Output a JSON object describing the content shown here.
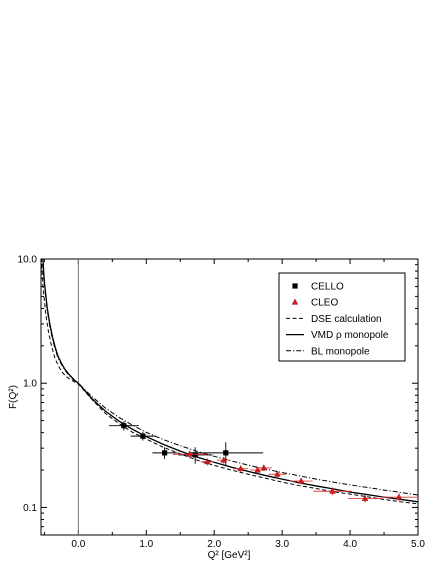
{
  "chart_data": {
    "type": "scatter",
    "title": "",
    "xlabel": "Q² [GeV²]",
    "ylabel": "F(Q²)",
    "xlim": [
      -0.55,
      5.0
    ],
    "ylim": [
      0.06,
      10.0
    ],
    "yscale": "log",
    "x_ticks": [
      0.0,
      1.0,
      2.0,
      3.0,
      4.0,
      5.0
    ],
    "x_tick_labels": [
      "0.0",
      "1.0",
      "2.0",
      "3.0",
      "4.0",
      "5.0"
    ],
    "y_ticks": [
      0.1,
      1.0,
      10.0
    ],
    "y_tick_labels": [
      "0.1",
      "1.0",
      "10.0"
    ],
    "grid": false,
    "legend_position": "top-right",
    "vertical_line_at_x": 0.0,
    "series": [
      {
        "name": "CELLO",
        "kind": "points",
        "marker": "square",
        "color": "#000000",
        "points": [
          {
            "x": 0.67,
            "y": 0.455,
            "xerr": 0.22,
            "yerr": 0.04
          },
          {
            "x": 0.95,
            "y": 0.375,
            "xerr": 0.18,
            "yerr": 0.03
          },
          {
            "x": 1.27,
            "y": 0.275,
            "xerr": 0.18,
            "yerr": 0.03
          },
          {
            "x": 1.72,
            "y": 0.265,
            "xerr": 0.25,
            "yerr": 0.04
          },
          {
            "x": 2.17,
            "y": 0.275,
            "xerr": 0.55,
            "yerr": 0.06
          }
        ]
      },
      {
        "name": "CLEO",
        "kind": "points",
        "marker": "triangle",
        "color": "#d91a1a",
        "points": [
          {
            "x": 1.64,
            "y": 0.268,
            "xerr": 0.25,
            "yerr": 0.02
          },
          {
            "x": 1.9,
            "y": 0.233,
            "xerr": 0.1,
            "yerr": 0.015
          },
          {
            "x": 2.14,
            "y": 0.24,
            "xerr": 0.1,
            "yerr": 0.015
          },
          {
            "x": 2.39,
            "y": 0.205,
            "xerr": 0.11,
            "yerr": 0.012
          },
          {
            "x": 2.64,
            "y": 0.2,
            "xerr": 0.11,
            "yerr": 0.012
          },
          {
            "x": 2.73,
            "y": 0.208,
            "xerr": 0.12,
            "yerr": 0.012
          },
          {
            "x": 2.93,
            "y": 0.185,
            "xerr": 0.13,
            "yerr": 0.012
          },
          {
            "x": 3.28,
            "y": 0.163,
            "xerr": 0.17,
            "yerr": 0.01
          },
          {
            "x": 3.74,
            "y": 0.135,
            "xerr": 0.28,
            "yerr": 0.01
          },
          {
            "x": 4.22,
            "y": 0.118,
            "xerr": 0.25,
            "yerr": 0.009
          },
          {
            "x": 4.72,
            "y": 0.121,
            "xerr": 0.28,
            "yerr": 0.009
          }
        ]
      },
      {
        "name": "DSE calculation",
        "kind": "curve",
        "dash": "dashed",
        "color": "#000000",
        "x": [
          -0.55,
          -0.52,
          -0.48,
          -0.44,
          -0.4,
          -0.35,
          -0.3,
          -0.25,
          -0.2,
          -0.15,
          -0.1,
          -0.05,
          0.0,
          0.2,
          0.4,
          0.6,
          0.8,
          1.0,
          1.25,
          1.5,
          1.75,
          2.0,
          2.25,
          2.5,
          2.75,
          3.0,
          3.25,
          3.5,
          3.75,
          4.0,
          4.25,
          4.5,
          4.75,
          5.0
        ],
        "y": [
          11.5,
          6.0,
          3.6,
          2.6,
          2.05,
          1.62,
          1.4,
          1.25,
          1.16,
          1.1,
          1.06,
          1.02,
          0.985,
          0.74,
          0.57,
          0.473,
          0.402,
          0.355,
          0.305,
          0.27,
          0.24,
          0.218,
          0.2,
          0.185,
          0.172,
          0.16,
          0.15,
          0.142,
          0.134,
          0.128,
          0.122,
          0.116,
          0.111,
          0.107
        ]
      },
      {
        "name": "VMD ρ monopole",
        "kind": "curve",
        "dash": "solid",
        "color": "#000000",
        "x": [
          -0.53,
          -0.5,
          -0.46,
          -0.42,
          -0.38,
          -0.34,
          -0.3,
          -0.25,
          -0.2,
          -0.15,
          -0.1,
          -0.05,
          0.0,
          0.2,
          0.4,
          0.6,
          0.8,
          1.0,
          1.25,
          1.5,
          1.75,
          2.0,
          2.25,
          2.5,
          2.75,
          3.0,
          3.25,
          3.5,
          3.75,
          4.0,
          4.25,
          4.5,
          4.75,
          5.0
        ],
        "y": [
          11.5,
          6.5,
          4.1,
          3.0,
          2.35,
          1.94,
          1.65,
          1.45,
          1.3,
          1.2,
          1.12,
          1.05,
          1.0,
          0.75,
          0.595,
          0.495,
          0.425,
          0.372,
          0.322,
          0.284,
          0.254,
          0.231,
          0.211,
          0.195,
          0.181,
          0.169,
          0.158,
          0.149,
          0.141,
          0.133,
          0.127,
          0.121,
          0.116,
          0.111
        ]
      },
      {
        "name": "BL monopole",
        "kind": "curve",
        "dash": "dashdot",
        "color": "#000000",
        "x": [
          -0.53,
          -0.5,
          -0.46,
          -0.42,
          -0.38,
          -0.34,
          -0.3,
          -0.25,
          -0.2,
          -0.15,
          -0.1,
          -0.05,
          0.0,
          0.2,
          0.4,
          0.6,
          0.8,
          1.0,
          1.25,
          1.5,
          1.75,
          2.0,
          2.25,
          2.5,
          2.75,
          3.0,
          3.25,
          3.5,
          3.75,
          4.0,
          4.25,
          4.5,
          4.75,
          5.0
        ],
        "y": [
          11.5,
          6.3,
          3.9,
          2.85,
          2.25,
          1.87,
          1.6,
          1.42,
          1.28,
          1.18,
          1.1,
          1.04,
          1.0,
          0.78,
          0.63,
          0.53,
          0.458,
          0.402,
          0.352,
          0.314,
          0.283,
          0.258,
          0.237,
          0.219,
          0.204,
          0.191,
          0.18,
          0.169,
          0.16,
          0.152,
          0.145,
          0.138,
          0.132,
          0.126
        ]
      }
    ]
  },
  "legend": {
    "items": [
      {
        "label": "CELLO",
        "symbol": "square"
      },
      {
        "label": "CLEO",
        "symbol": "triangle"
      },
      {
        "label": "DSE calculation",
        "symbol": "dashed"
      },
      {
        "label": "VMD ρ monopole",
        "symbol": "solid"
      },
      {
        "label": "BL monopole",
        "symbol": "dashdot"
      }
    ]
  },
  "colors": {
    "cello": "#000000",
    "cleo": "#d91a1a",
    "axes": "#000000",
    "zero_line": "#777777"
  }
}
